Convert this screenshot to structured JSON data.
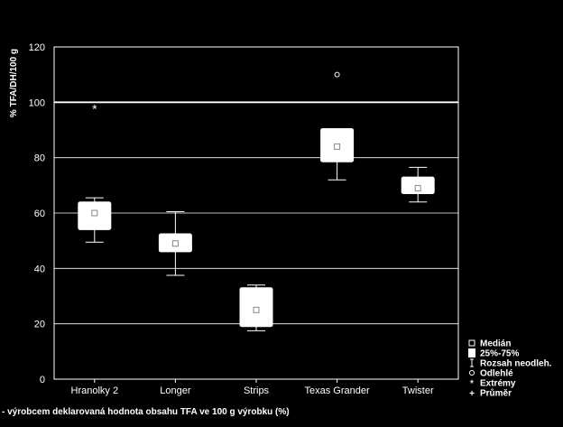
{
  "colors": {
    "background": "#000000",
    "foreground": "#ffffff"
  },
  "chart_data": {
    "type": "box",
    "ylabel": "% TFA/DH/100 g",
    "xlabel": "",
    "ylim": [
      0,
      120
    ],
    "yticks": [
      0,
      20,
      40,
      60,
      80,
      100,
      120
    ],
    "grid": true,
    "reference_line": 100,
    "categories": [
      "Hranolky 2",
      "Longer",
      "Strips",
      "Texas Grander",
      "Twister"
    ],
    "boxes": [
      {
        "category": "Hranolky 2",
        "whisker_low": 49.5,
        "q1": 54,
        "median": 60,
        "q3": 64,
        "whisker_high": 65.5,
        "mean": 58.5,
        "outliers": [],
        "extremes": [
          98
        ]
      },
      {
        "category": "Longer",
        "whisker_low": 37.5,
        "q1": 46,
        "median": 49,
        "q3": 52.5,
        "whisker_high": 60.5,
        "mean": 49.5,
        "outliers": [],
        "extremes": []
      },
      {
        "category": "Strips",
        "whisker_low": 17.5,
        "q1": 19,
        "median": 25,
        "q3": 33,
        "whisker_high": 34,
        "mean": 26,
        "outliers": [],
        "extremes": []
      },
      {
        "category": "Texas Grander",
        "whisker_low": 72,
        "q1": 78.5,
        "median": 84,
        "q3": 90.5,
        "whisker_high": 90.5,
        "mean": 84.5,
        "outliers": [
          110
        ],
        "extremes": []
      },
      {
        "category": "Twister",
        "whisker_low": 64,
        "q1": 67,
        "median": 69,
        "q3": 73,
        "whisker_high": 76.5,
        "mean": 70,
        "outliers": [],
        "extremes": []
      }
    ],
    "legend": {
      "placement": "right",
      "entries": [
        {
          "symbol": "median",
          "label": "Medián"
        },
        {
          "symbol": "box",
          "label": "25%-75%"
        },
        {
          "symbol": "whisker",
          "label": "Rozsah neodleh."
        },
        {
          "symbol": "outlier",
          "label": "Odlehlé"
        },
        {
          "symbol": "extreme",
          "label": "Extrémy"
        },
        {
          "symbol": "mean",
          "label": "Průměr"
        }
      ]
    },
    "footnote": "- výrobcem deklarovaná hodnota obsahu TFA ve 100 g výrobku (%)"
  }
}
